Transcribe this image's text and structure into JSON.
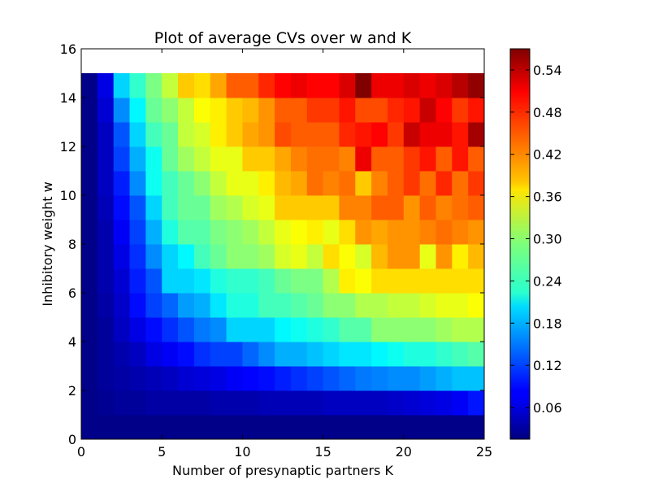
{
  "chart_data": {
    "type": "heatmap",
    "title": "Plot of average CVs over w and K",
    "xlabel": "Number of presynaptic partners K",
    "ylabel": "Inhibitory weight w",
    "xlim": [
      0,
      25
    ],
    "ylim": [
      0,
      16
    ],
    "x_ticks": [
      "0",
      "5",
      "10",
      "15",
      "20",
      "25"
    ],
    "y_ticks": [
      "0",
      "2",
      "4",
      "6",
      "8",
      "10",
      "12",
      "14",
      "16"
    ],
    "colorbar": {
      "colormap": "jet",
      "vmin": 0.015,
      "vmax": 0.57,
      "ticks": [
        "0.06",
        "0.12",
        "0.18",
        "0.24",
        "0.30",
        "0.36",
        "0.42",
        "0.48",
        "0.54"
      ]
    },
    "grid": false,
    "cell_value_range": "rows w = 0..14, columns K = 0..24; row w=15 empty",
    "values": [
      [
        0.02,
        0.02,
        0.02,
        0.02,
        0.02,
        0.02,
        0.02,
        0.02,
        0.02,
        0.02,
        0.02,
        0.02,
        0.02,
        0.02,
        0.02,
        0.02,
        0.02,
        0.02,
        0.02,
        0.02,
        0.02,
        0.02,
        0.02,
        0.02,
        0.02
      ],
      [
        0.02,
        0.025,
        0.03,
        0.03,
        0.035,
        0.035,
        0.035,
        0.035,
        0.04,
        0.04,
        0.04,
        0.045,
        0.045,
        0.045,
        0.045,
        0.05,
        0.05,
        0.05,
        0.05,
        0.055,
        0.06,
        0.065,
        0.07,
        0.08,
        0.095
      ],
      [
        0.02,
        0.03,
        0.035,
        0.04,
        0.045,
        0.05,
        0.06,
        0.065,
        0.07,
        0.08,
        0.085,
        0.09,
        0.1,
        0.11,
        0.12,
        0.13,
        0.14,
        0.15,
        0.155,
        0.16,
        0.16,
        0.17,
        0.18,
        0.19,
        0.19
      ],
      [
        0.02,
        0.03,
        0.04,
        0.05,
        0.07,
        0.08,
        0.09,
        0.11,
        0.12,
        0.12,
        0.14,
        0.16,
        0.18,
        0.18,
        0.19,
        0.2,
        0.21,
        0.21,
        0.22,
        0.23,
        0.24,
        0.24,
        0.25,
        0.26,
        0.27
      ],
      [
        0.02,
        0.03,
        0.05,
        0.07,
        0.09,
        0.11,
        0.13,
        0.15,
        0.16,
        0.2,
        0.2,
        0.2,
        0.22,
        0.23,
        0.24,
        0.25,
        0.27,
        0.27,
        0.3,
        0.3,
        0.3,
        0.3,
        0.31,
        0.32,
        0.32
      ],
      [
        0.02,
        0.035,
        0.055,
        0.09,
        0.12,
        0.14,
        0.17,
        0.18,
        0.21,
        0.24,
        0.24,
        0.26,
        0.26,
        0.27,
        0.28,
        0.3,
        0.3,
        0.32,
        0.32,
        0.33,
        0.33,
        0.34,
        0.35,
        0.35,
        0.36
      ],
      [
        0.02,
        0.04,
        0.06,
        0.1,
        0.13,
        0.2,
        0.2,
        0.21,
        0.24,
        0.25,
        0.25,
        0.26,
        0.28,
        0.29,
        0.29,
        0.32,
        0.37,
        0.36,
        0.38,
        0.38,
        0.38,
        0.38,
        0.38,
        0.38,
        0.38
      ],
      [
        0.02,
        0.04,
        0.07,
        0.11,
        0.16,
        0.2,
        0.22,
        0.26,
        0.28,
        0.3,
        0.3,
        0.31,
        0.34,
        0.35,
        0.33,
        0.38,
        0.36,
        0.34,
        0.4,
        0.42,
        0.42,
        0.35,
        0.42,
        0.37,
        0.4
      ],
      [
        0.02,
        0.04,
        0.08,
        0.12,
        0.18,
        0.24,
        0.27,
        0.27,
        0.29,
        0.3,
        0.31,
        0.33,
        0.35,
        0.36,
        0.37,
        0.35,
        0.38,
        0.42,
        0.41,
        0.42,
        0.42,
        0.43,
        0.44,
        0.43,
        0.42
      ],
      [
        0.02,
        0.045,
        0.09,
        0.13,
        0.2,
        0.26,
        0.28,
        0.28,
        0.31,
        0.32,
        0.34,
        0.35,
        0.39,
        0.39,
        0.39,
        0.39,
        0.43,
        0.43,
        0.45,
        0.45,
        0.42,
        0.45,
        0.43,
        0.44,
        0.45
      ],
      [
        0.02,
        0.05,
        0.1,
        0.16,
        0.23,
        0.26,
        0.28,
        0.3,
        0.33,
        0.35,
        0.35,
        0.37,
        0.4,
        0.41,
        0.44,
        0.43,
        0.44,
        0.39,
        0.43,
        0.45,
        0.47,
        0.44,
        0.48,
        0.44,
        0.47
      ],
      [
        0.02,
        0.05,
        0.12,
        0.18,
        0.23,
        0.28,
        0.31,
        0.33,
        0.35,
        0.35,
        0.39,
        0.39,
        0.41,
        0.43,
        0.44,
        0.44,
        0.43,
        0.51,
        0.45,
        0.45,
        0.47,
        0.49,
        0.45,
        0.49,
        0.45
      ],
      [
        0.02,
        0.05,
        0.13,
        0.2,
        0.26,
        0.28,
        0.33,
        0.34,
        0.37,
        0.39,
        0.41,
        0.42,
        0.46,
        0.45,
        0.45,
        0.45,
        0.48,
        0.49,
        0.5,
        0.47,
        0.53,
        0.51,
        0.51,
        0.49,
        0.55
      ],
      [
        0.02,
        0.06,
        0.16,
        0.22,
        0.28,
        0.3,
        0.33,
        0.36,
        0.37,
        0.39,
        0.4,
        0.42,
        0.45,
        0.45,
        0.47,
        0.47,
        0.49,
        0.46,
        0.46,
        0.48,
        0.49,
        0.53,
        0.5,
        0.47,
        0.49
      ],
      [
        0.02,
        0.07,
        0.2,
        0.25,
        0.29,
        0.33,
        0.39,
        0.38,
        0.41,
        0.45,
        0.45,
        0.48,
        0.5,
        0.51,
        0.5,
        0.5,
        0.52,
        0.57,
        0.51,
        0.51,
        0.52,
        0.51,
        0.52,
        0.54,
        0.56
      ]
    ]
  }
}
